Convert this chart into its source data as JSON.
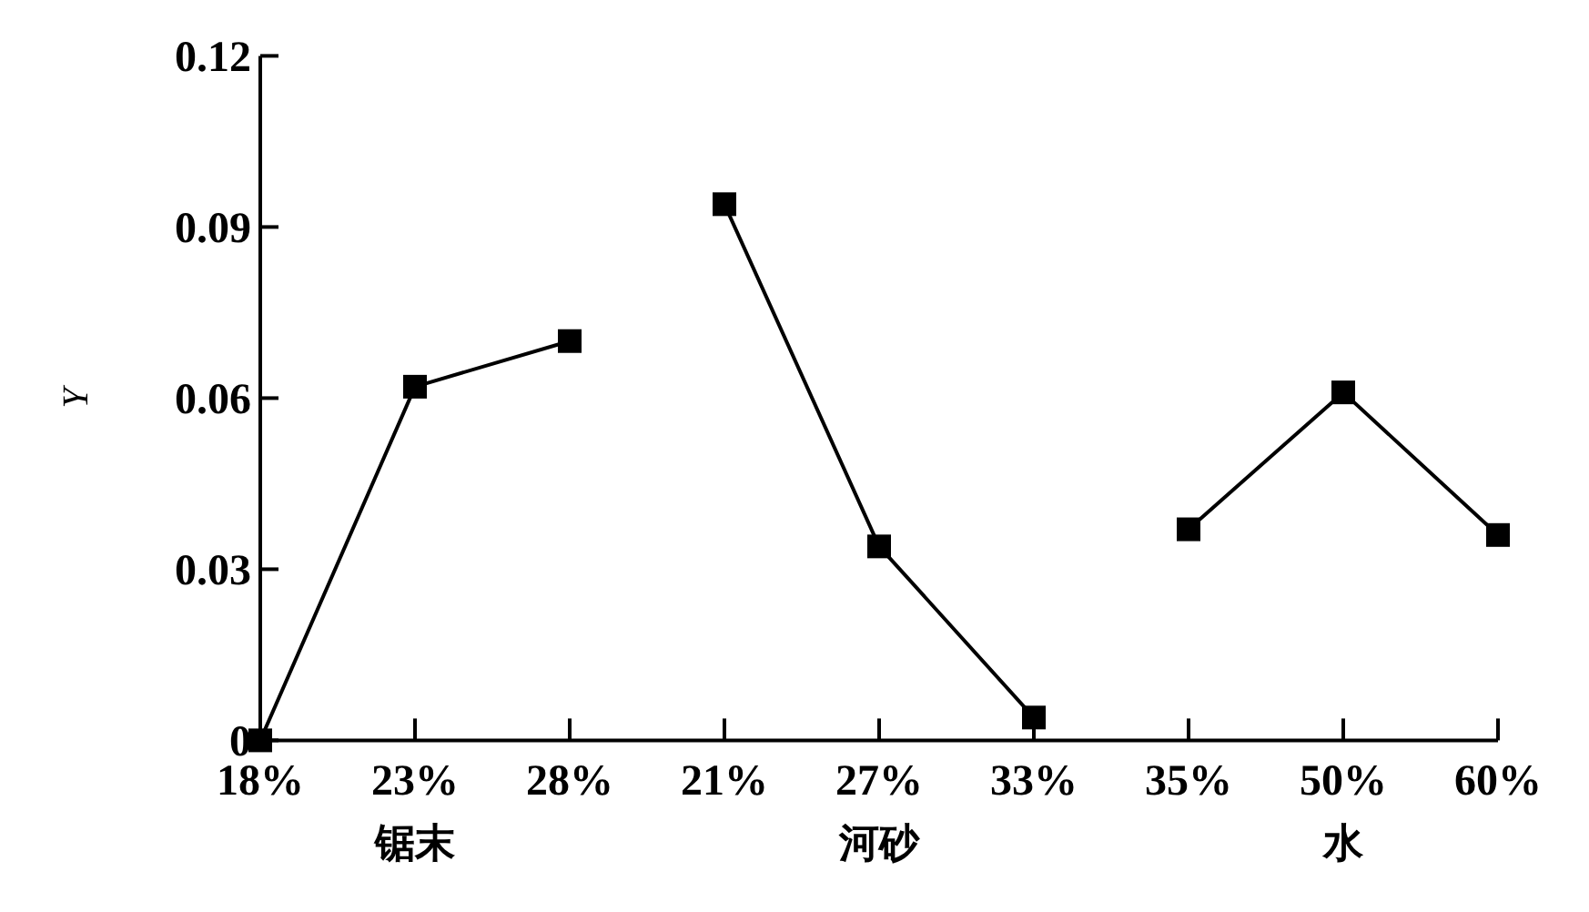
{
  "chart_data": {
    "type": "line",
    "ylabel": "Y",
    "categories": [
      "18%",
      "23%",
      "28%",
      "21%",
      "27%",
      "33%",
      "35%",
      "50%",
      "60%"
    ],
    "series": [
      {
        "color": "#000000",
        "values": [
          0,
          0.062,
          0.07,
          null,
          null,
          null,
          null,
          null,
          null
        ]
      },
      {
        "color": "#000000",
        "values": [
          null,
          null,
          null,
          0.094,
          0.034,
          0.004,
          null,
          null,
          null
        ]
      },
      {
        "color": "#000000",
        "values": [
          null,
          null,
          null,
          null,
          null,
          null,
          0.037,
          0.061,
          0.036
        ]
      }
    ],
    "annotations": [
      "锯末",
      "河砂",
      "水"
    ],
    "ylim": [
      0,
      0.12
    ],
    "yticks": [
      0,
      0.03,
      0.06,
      0.09,
      0.12
    ],
    "marker": "square",
    "line_style": "solid",
    "grid": false
  }
}
